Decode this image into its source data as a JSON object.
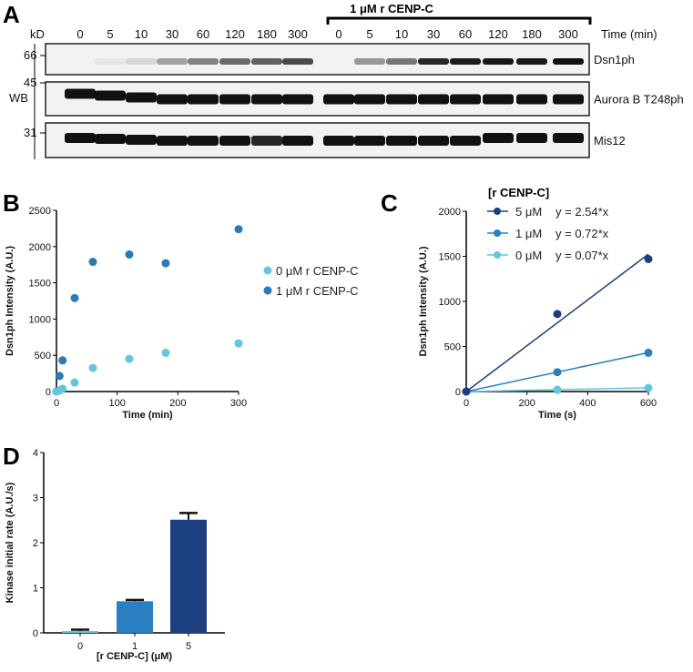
{
  "panels": {
    "a": "A",
    "b": "B",
    "c": "C",
    "d": "D"
  },
  "blot": {
    "condition_header": "1 μM r CENP-C",
    "kd_label": "kD",
    "time_label": "Time (min)",
    "wb_label": "WB",
    "lanes": [
      "0",
      "5",
      "10",
      "30",
      "60",
      "120",
      "180",
      "300",
      "0",
      "5",
      "10",
      "30",
      "60",
      "120",
      "180",
      "300"
    ],
    "rows": [
      {
        "label": "Dsn1ph",
        "mw": "66",
        "intensity": [
          0,
          0.05,
          0.12,
          0.35,
          0.5,
          0.6,
          0.65,
          0.75,
          0,
          0.4,
          0.55,
          0.9,
          0.95,
          0.97,
          0.97,
          1
        ]
      },
      {
        "label": "Aurora B T248ph",
        "mw": "45",
        "intensity": [
          1,
          1,
          1,
          1,
          1,
          1,
          1,
          1,
          1,
          1,
          1,
          1,
          1,
          1,
          1,
          1
        ]
      },
      {
        "label": "Mis12",
        "mw": "31",
        "intensity": [
          1,
          1,
          1,
          1,
          1,
          1,
          0.9,
          1,
          1,
          1,
          1,
          1,
          1,
          1,
          1,
          1
        ]
      }
    ]
  },
  "chart_data": [
    {
      "type": "scatter",
      "ylabel": "Dsn1ph Intensity (A.U.)",
      "xlabel": "Time (min)",
      "xlim": [
        0,
        300
      ],
      "ylim": [
        0,
        2500
      ],
      "xticks": [
        "0",
        "100",
        "200",
        "300"
      ],
      "yticks": [
        "0",
        "500",
        "1000",
        "1500",
        "2000",
        "2500"
      ],
      "legend_position": "right",
      "series": [
        {
          "name": "0 μM r CENP-C",
          "color": "#62c6dd",
          "x": [
            0,
            5,
            10,
            30,
            60,
            120,
            180,
            300
          ],
          "y": [
            0,
            15,
            40,
            125,
            325,
            450,
            535,
            665
          ]
        },
        {
          "name": "1 μM r CENP-C",
          "color": "#2a7ab8",
          "x": [
            0,
            5,
            10,
            30,
            60,
            120,
            180,
            300
          ],
          "y": [
            0,
            215,
            430,
            1290,
            1790,
            1890,
            1770,
            2240
          ]
        }
      ]
    },
    {
      "type": "line",
      "legend_title": "[r CENP-C]",
      "ylabel": "Dsn1ph Intensity (A.U.)",
      "xlabel": "Time (s)",
      "xlim": [
        0,
        600
      ],
      "ylim": [
        0,
        2000
      ],
      "xticks": [
        "0",
        "200",
        "400",
        "600"
      ],
      "yticks": [
        "0",
        "500",
        "1000",
        "1500",
        "2000"
      ],
      "legend_position": "top",
      "series": [
        {
          "name": "5 μM",
          "fit": "y = 2.54*x",
          "slope": 2.54,
          "color": "#1c3f7f",
          "x": [
            0,
            300,
            600
          ],
          "y": [
            0,
            860,
            1470
          ]
        },
        {
          "name": "1 μM",
          "fit": "y = 0.72*x",
          "slope": 0.72,
          "color": "#2a80c0",
          "x": [
            0,
            300,
            600
          ],
          "y": [
            0,
            215,
            430
          ]
        },
        {
          "name": "0 μM",
          "fit": "y = 0.07*x",
          "slope": 0.07,
          "color": "#62c6dd",
          "x": [
            0,
            300,
            600
          ],
          "y": [
            0,
            20,
            40
          ]
        }
      ]
    },
    {
      "type": "bar",
      "ylabel": "Kinase initial rate (A.U./s)",
      "xlabel": "[r CENP-C] (μM)",
      "categories": [
        "0",
        "1",
        "5"
      ],
      "values": [
        0.04,
        0.7,
        2.51
      ],
      "errors": [
        0.03,
        0.03,
        0.15
      ],
      "colors": [
        "#62c6dd",
        "#2a80c0",
        "#1c3f7f"
      ],
      "ylim": [
        0,
        4
      ],
      "yticks": [
        "0",
        "1",
        "2",
        "3",
        "4"
      ]
    }
  ]
}
